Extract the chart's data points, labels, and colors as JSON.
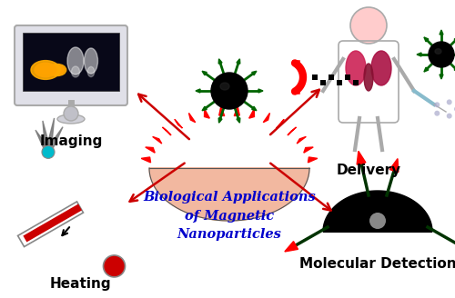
{
  "title": "Biological Applications\nof Magnetic\nNanoparticles",
  "title_color": "#0000CC",
  "title_fontsize": 10.5,
  "background_color": "#ffffff",
  "labels": [
    "Imaging",
    "Delivery",
    "Heating",
    "Molecular Detection"
  ],
  "label_fontsize": 11,
  "arrow_color": "#CC0000",
  "fig_width": 5.0,
  "fig_height": 3.28,
  "dpi": 100
}
